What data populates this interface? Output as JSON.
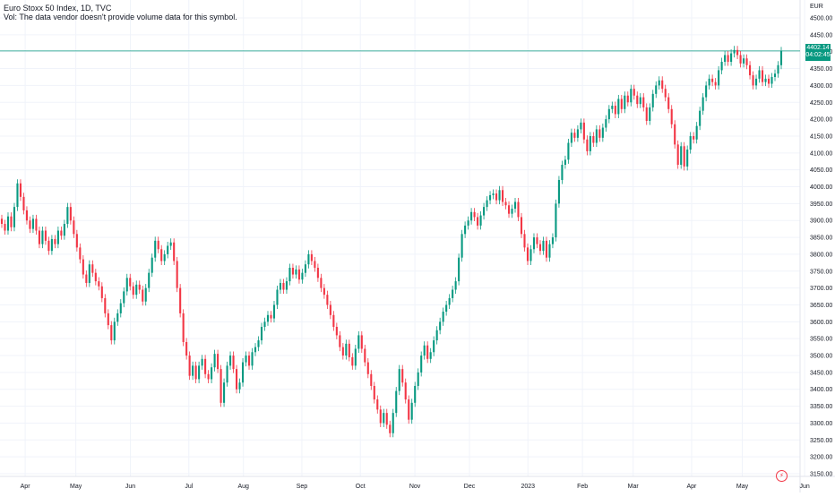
{
  "header": {
    "title": "Euro Stoxx 50 Index, 1D, TVC",
    "volume_note": "Vol: The data vendor doesn't provide volume data for this symbol."
  },
  "price_axis": {
    "currency": "EUR"
  },
  "last_price": {
    "value": "4402.14",
    "countdown": "04:02:45"
  },
  "icons": {
    "alert": "lightning-icon"
  },
  "colors": {
    "up": "#089981",
    "down": "#f23645",
    "line": "#089981",
    "grid": "#f0f3fa",
    "text": "#131722"
  },
  "chart_data": {
    "type": "candlestick",
    "title": "Euro Stoxx 50 Index, 1D, TVC",
    "ylim": [
      3150,
      4500
    ],
    "yticks": [
      3150,
      3200,
      3250,
      3300,
      3350,
      3400,
      3450,
      3500,
      3550,
      3600,
      3650,
      3700,
      3750,
      3800,
      3850,
      3900,
      3950,
      4000,
      4050,
      4100,
      4150,
      4200,
      4250,
      4300,
      4350,
      4400,
      4450,
      4500
    ],
    "xticks": [
      "Apr",
      "May",
      "Jun",
      "Jul",
      "Aug",
      "Sep",
      "Oct",
      "Nov",
      "Dec",
      "2023",
      "Feb",
      "Mar",
      "Apr",
      "May",
      "Jun"
    ],
    "last_value": 4402.14,
    "grid": true,
    "series": [
      {
        "values": [
          [
            3905,
            3890
          ],
          [
            3890,
            3870
          ],
          [
            3870,
            3912
          ],
          [
            3912,
            3880
          ],
          [
            3880,
            3940
          ],
          [
            3940,
            4010
          ],
          [
            4010,
            3970
          ],
          [
            3970,
            3930
          ],
          [
            3930,
            3900
          ],
          [
            3900,
            3875
          ],
          [
            3875,
            3905
          ],
          [
            3905,
            3870
          ],
          [
            3870,
            3830
          ],
          [
            3830,
            3870
          ],
          [
            3870,
            3840
          ],
          [
            3840,
            3810
          ],
          [
            3810,
            3845
          ],
          [
            3845,
            3830
          ],
          [
            3830,
            3870
          ],
          [
            3870,
            3855
          ],
          [
            3855,
            3890
          ],
          [
            3890,
            3940
          ],
          [
            3940,
            3900
          ],
          [
            3900,
            3860
          ],
          [
            3860,
            3820
          ],
          [
            3820,
            3785
          ],
          [
            3785,
            3740
          ],
          [
            3740,
            3715
          ],
          [
            3715,
            3770
          ],
          [
            3770,
            3745
          ],
          [
            3745,
            3720
          ],
          [
            3720,
            3705
          ],
          [
            3705,
            3670
          ],
          [
            3670,
            3625
          ],
          [
            3625,
            3590
          ],
          [
            3590,
            3545
          ],
          [
            3545,
            3600
          ],
          [
            3600,
            3625
          ],
          [
            3625,
            3655
          ],
          [
            3655,
            3690
          ],
          [
            3690,
            3730
          ],
          [
            3730,
            3705
          ],
          [
            3705,
            3680
          ],
          [
            3680,
            3710
          ],
          [
            3710,
            3695
          ],
          [
            3695,
            3660
          ],
          [
            3660,
            3700
          ],
          [
            3700,
            3745
          ],
          [
            3745,
            3790
          ],
          [
            3790,
            3840
          ],
          [
            3840,
            3815
          ],
          [
            3815,
            3780
          ],
          [
            3780,
            3800
          ],
          [
            3800,
            3825
          ],
          [
            3825,
            3835
          ],
          [
            3835,
            3780
          ],
          [
            3780,
            3700
          ],
          [
            3700,
            3625
          ],
          [
            3625,
            3540
          ],
          [
            3540,
            3500
          ],
          [
            3500,
            3440
          ],
          [
            3440,
            3470
          ],
          [
            3470,
            3430
          ],
          [
            3430,
            3470
          ],
          [
            3470,
            3490
          ],
          [
            3490,
            3445
          ],
          [
            3445,
            3430
          ],
          [
            3430,
            3465
          ],
          [
            3465,
            3505
          ],
          [
            3505,
            3460
          ],
          [
            3460,
            3360
          ],
          [
            3360,
            3420
          ],
          [
            3420,
            3470
          ],
          [
            3470,
            3500
          ],
          [
            3500,
            3460
          ],
          [
            3460,
            3400
          ],
          [
            3400,
            3420
          ],
          [
            3420,
            3480
          ],
          [
            3480,
            3500
          ],
          [
            3500,
            3470
          ],
          [
            3470,
            3510
          ],
          [
            3510,
            3525
          ],
          [
            3525,
            3545
          ],
          [
            3545,
            3585
          ],
          [
            3585,
            3600
          ],
          [
            3600,
            3620
          ],
          [
            3620,
            3610
          ],
          [
            3610,
            3650
          ],
          [
            3650,
            3695
          ],
          [
            3695,
            3715
          ],
          [
            3715,
            3695
          ],
          [
            3695,
            3720
          ],
          [
            3720,
            3760
          ],
          [
            3760,
            3740
          ],
          [
            3740,
            3755
          ],
          [
            3755,
            3725
          ],
          [
            3725,
            3745
          ],
          [
            3745,
            3770
          ],
          [
            3770,
            3800
          ],
          [
            3800,
            3780
          ],
          [
            3780,
            3760
          ],
          [
            3760,
            3730
          ],
          [
            3730,
            3700
          ],
          [
            3700,
            3680
          ],
          [
            3680,
            3650
          ],
          [
            3650,
            3620
          ],
          [
            3620,
            3585
          ],
          [
            3585,
            3560
          ],
          [
            3560,
            3525
          ],
          [
            3525,
            3500
          ],
          [
            3500,
            3535
          ],
          [
            3535,
            3495
          ],
          [
            3495,
            3470
          ],
          [
            3470,
            3520
          ],
          [
            3520,
            3560
          ],
          [
            3560,
            3520
          ],
          [
            3520,
            3480
          ],
          [
            3480,
            3445
          ],
          [
            3445,
            3410
          ],
          [
            3410,
            3370
          ],
          [
            3370,
            3340
          ],
          [
            3340,
            3300
          ],
          [
            3300,
            3330
          ],
          [
            3330,
            3295
          ],
          [
            3295,
            3270
          ],
          [
            3270,
            3330
          ],
          [
            3330,
            3395
          ],
          [
            3395,
            3460
          ],
          [
            3460,
            3420
          ],
          [
            3420,
            3370
          ],
          [
            3370,
            3310
          ],
          [
            3310,
            3360
          ],
          [
            3360,
            3410
          ],
          [
            3410,
            3450
          ],
          [
            3450,
            3500
          ],
          [
            3500,
            3530
          ],
          [
            3530,
            3490
          ],
          [
            3490,
            3510
          ],
          [
            3510,
            3545
          ],
          [
            3545,
            3575
          ],
          [
            3575,
            3600
          ],
          [
            3600,
            3630
          ],
          [
            3630,
            3650
          ],
          [
            3650,
            3670
          ],
          [
            3670,
            3695
          ],
          [
            3695,
            3720
          ],
          [
            3720,
            3790
          ],
          [
            3790,
            3860
          ],
          [
            3860,
            3885
          ],
          [
            3885,
            3900
          ],
          [
            3900,
            3925
          ],
          [
            3925,
            3910
          ],
          [
            3910,
            3885
          ],
          [
            3885,
            3915
          ],
          [
            3915,
            3940
          ],
          [
            3940,
            3960
          ],
          [
            3960,
            3975
          ],
          [
            3975,
            3980
          ],
          [
            3980,
            3960
          ],
          [
            3960,
            3990
          ],
          [
            3990,
            3955
          ],
          [
            3955,
            3945
          ],
          [
            3945,
            3920
          ],
          [
            3920,
            3935
          ],
          [
            3935,
            3955
          ],
          [
            3955,
            3910
          ],
          [
            3910,
            3860
          ],
          [
            3860,
            3820
          ],
          [
            3820,
            3780
          ],
          [
            3780,
            3815
          ],
          [
            3815,
            3850
          ],
          [
            3850,
            3830
          ],
          [
            3830,
            3810
          ],
          [
            3810,
            3840
          ],
          [
            3840,
            3790
          ],
          [
            3790,
            3830
          ],
          [
            3830,
            3850
          ],
          [
            3850,
            3950
          ],
          [
            3950,
            4020
          ],
          [
            4020,
            4065
          ],
          [
            4065,
            4080
          ],
          [
            4080,
            4130
          ],
          [
            4130,
            4160
          ],
          [
            4160,
            4145
          ],
          [
            4145,
            4170
          ],
          [
            4170,
            4190
          ],
          [
            4190,
            4140
          ],
          [
            4140,
            4105
          ],
          [
            4105,
            4150
          ],
          [
            4150,
            4130
          ],
          [
            4130,
            4170
          ],
          [
            4170,
            4145
          ],
          [
            4145,
            4175
          ],
          [
            4175,
            4200
          ],
          [
            4200,
            4230
          ],
          [
            4230,
            4240
          ],
          [
            4240,
            4215
          ],
          [
            4215,
            4260
          ],
          [
            4260,
            4230
          ],
          [
            4230,
            4270
          ],
          [
            4270,
            4250
          ],
          [
            4250,
            4290
          ],
          [
            4290,
            4270
          ],
          [
            4270,
            4245
          ],
          [
            4245,
            4265
          ],
          [
            4265,
            4235
          ],
          [
            4235,
            4195
          ],
          [
            4195,
            4235
          ],
          [
            4235,
            4275
          ],
          [
            4275,
            4300
          ],
          [
            4300,
            4315
          ],
          [
            4315,
            4290
          ],
          [
            4290,
            4265
          ],
          [
            4265,
            4230
          ],
          [
            4230,
            4185
          ],
          [
            4185,
            4125
          ],
          [
            4125,
            4065
          ],
          [
            4065,
            4120
          ],
          [
            4120,
            4060
          ],
          [
            4060,
            4110
          ],
          [
            4110,
            4150
          ],
          [
            4150,
            4140
          ],
          [
            4140,
            4180
          ],
          [
            4180,
            4225
          ],
          [
            4225,
            4265
          ],
          [
            4265,
            4300
          ],
          [
            4300,
            4320
          ],
          [
            4320,
            4310
          ],
          [
            4310,
            4300
          ],
          [
            4300,
            4345
          ],
          [
            4345,
            4370
          ],
          [
            4370,
            4390
          ],
          [
            4390,
            4370
          ],
          [
            4370,
            4395
          ],
          [
            4395,
            4405
          ],
          [
            4405,
            4390
          ],
          [
            4390,
            4365
          ],
          [
            4365,
            4380
          ],
          [
            4380,
            4360
          ],
          [
            4360,
            4330
          ],
          [
            4330,
            4300
          ],
          [
            4300,
            4320
          ],
          [
            4320,
            4345
          ],
          [
            4345,
            4310
          ],
          [
            4310,
            4320
          ],
          [
            4320,
            4305
          ],
          [
            4305,
            4325
          ],
          [
            4325,
            4335
          ],
          [
            4335,
            4360
          ],
          [
            4360,
            4402.14
          ]
        ]
      }
    ]
  }
}
